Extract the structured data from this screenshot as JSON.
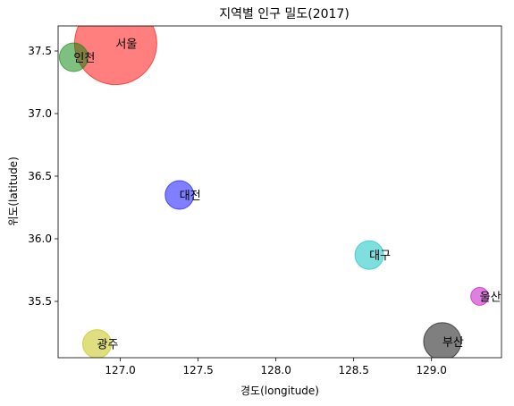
{
  "chart_data": {
    "type": "scatter",
    "title": "지역별 인구 밀도(2017)",
    "xlabel": "경도(longitude)",
    "ylabel": "위도(latitude)",
    "xlim": [
      126.6,
      129.45
    ],
    "ylim": [
      35.05,
      37.7
    ],
    "xticks": [
      127.0,
      127.5,
      128.0,
      128.5,
      129.0
    ],
    "xtick_labels": [
      "127.0",
      "127.5",
      "128.0",
      "128.5",
      "129.0"
    ],
    "yticks": [
      35.5,
      36.0,
      36.5,
      37.0,
      37.5
    ],
    "ytick_labels": [
      "35.5",
      "36.0",
      "36.5",
      "37.0",
      "37.5"
    ],
    "grid": false,
    "points": [
      {
        "label": "서울",
        "x": 126.97,
        "y": 37.56,
        "size": 46,
        "color": "#ff0000"
      },
      {
        "label": "인천",
        "x": 126.7,
        "y": 37.45,
        "size": 16,
        "color": "#008000"
      },
      {
        "label": "대전",
        "x": 127.38,
        "y": 36.35,
        "size": 16,
        "color": "#0000ff"
      },
      {
        "label": "대구",
        "x": 128.6,
        "y": 35.87,
        "size": 16,
        "color": "#00bfbf"
      },
      {
        "label": "울산",
        "x": 129.31,
        "y": 35.54,
        "size": 10,
        "color": "#bf00bf"
      },
      {
        "label": "부산",
        "x": 129.07,
        "y": 35.18,
        "size": 21,
        "color": "#000000"
      },
      {
        "label": "광주",
        "x": 126.85,
        "y": 35.16,
        "size": 16,
        "color": "#bfbf00"
      }
    ]
  }
}
